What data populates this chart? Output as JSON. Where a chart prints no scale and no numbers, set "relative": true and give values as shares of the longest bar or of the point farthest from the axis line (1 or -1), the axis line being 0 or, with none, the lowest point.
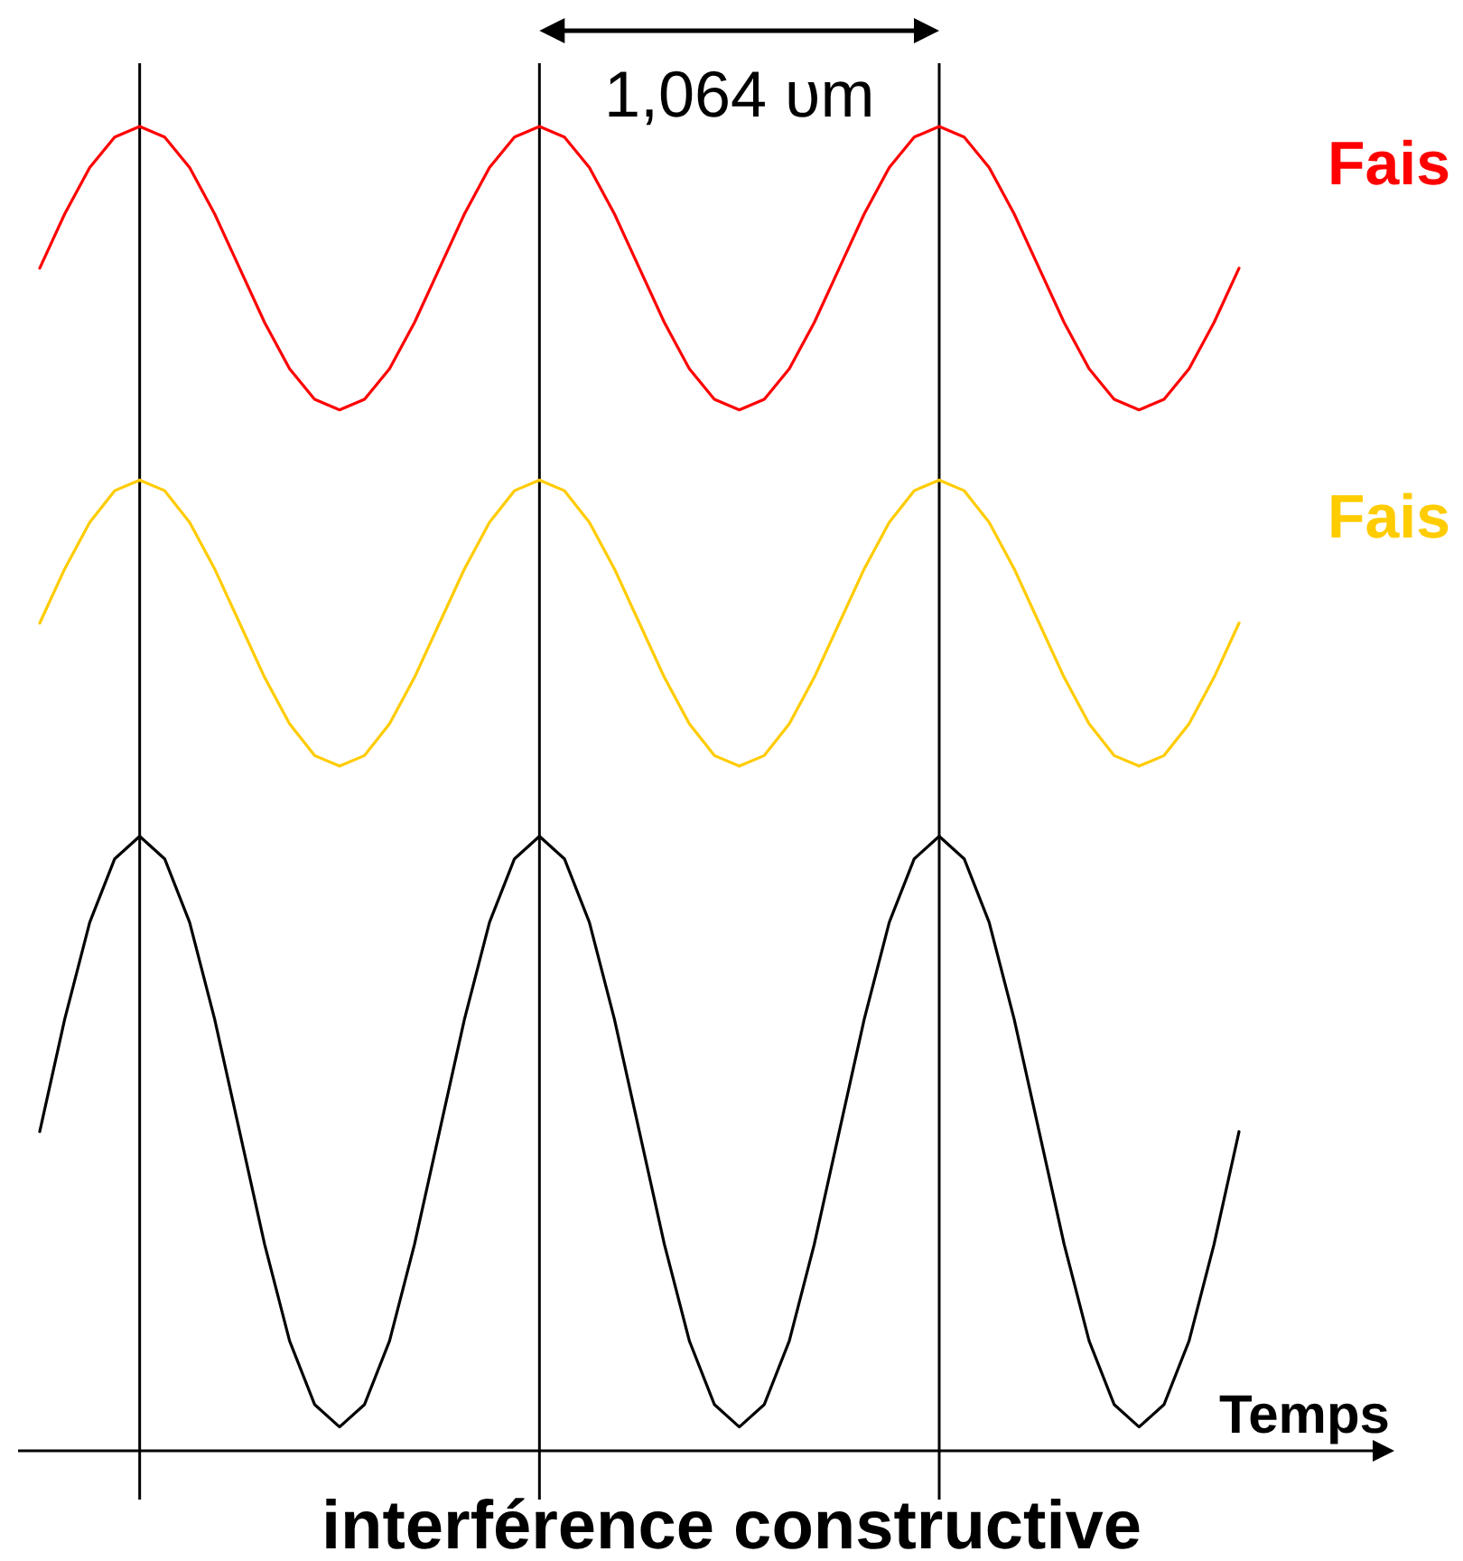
{
  "chart_data": {
    "type": "line",
    "relative": true,
    "title": "interférence constructive",
    "xlabel": "Temps",
    "categories": [
      null,
      null,
      null,
      null,
      null,
      null,
      null,
      null,
      null,
      null,
      null,
      null,
      null,
      null,
      null,
      null,
      null,
      null,
      null,
      null,
      null,
      null,
      null,
      null,
      null,
      null,
      null,
      null,
      null,
      null,
      null,
      null,
      null,
      null,
      null,
      null,
      null,
      null,
      null,
      null,
      null,
      null,
      null,
      null,
      null,
      null,
      null,
      null,
      null
    ],
    "series": [
      {
        "name": "Fais",
        "color": "#ff0000",
        "values": [
          0.893,
          0.934,
          0.969,
          0.992,
          1,
          0.992,
          0.969,
          0.934,
          0.893,
          0.852,
          0.817,
          0.794,
          0.786,
          0.794,
          0.817,
          0.852,
          0.893,
          0.934,
          0.969,
          0.992,
          1,
          0.992,
          0.969,
          0.934,
          0.893,
          0.852,
          0.817,
          0.794,
          0.786,
          0.794,
          0.817,
          0.852,
          0.893,
          0.934,
          0.969,
          0.992,
          1,
          0.992,
          0.969,
          0.934,
          0.893,
          0.852,
          0.817,
          0.794,
          0.786,
          0.794,
          0.817,
          0.852,
          0.893
        ]
      },
      {
        "name": "Fais",
        "color": "#ffcc00",
        "values": [
          0.625,
          0.666,
          0.701,
          0.725,
          0.733,
          0.725,
          0.701,
          0.666,
          0.625,
          0.584,
          0.549,
          0.525,
          0.517,
          0.525,
          0.549,
          0.584,
          0.625,
          0.666,
          0.701,
          0.725,
          0.733,
          0.725,
          0.701,
          0.666,
          0.625,
          0.584,
          0.549,
          0.525,
          0.517,
          0.525,
          0.549,
          0.584,
          0.625,
          0.666,
          0.701,
          0.725,
          0.733,
          0.725,
          0.701,
          0.666,
          0.625,
          0.584,
          0.549,
          0.525,
          0.517,
          0.525,
          0.549,
          0.584,
          0.625
        ]
      },
      {
        "color": "#000000",
        "values": [
          0.241,
          0.326,
          0.399,
          0.447,
          0.464,
          0.447,
          0.399,
          0.326,
          0.241,
          0.156,
          0.083,
          0.035,
          0.018,
          0.035,
          0.083,
          0.156,
          0.241,
          0.326,
          0.399,
          0.447,
          0.464,
          0.447,
          0.399,
          0.326,
          0.241,
          0.156,
          0.083,
          0.035,
          0.018,
          0.035,
          0.083,
          0.156,
          0.241,
          0.326,
          0.399,
          0.447,
          0.464,
          0.447,
          0.399,
          0.326,
          0.241,
          0.156,
          0.083,
          0.035,
          0.018,
          0.035,
          0.083,
          0.156,
          0.241
        ]
      }
    ],
    "grid": "x",
    "annotations": [
      "1,064 υm"
    ]
  }
}
